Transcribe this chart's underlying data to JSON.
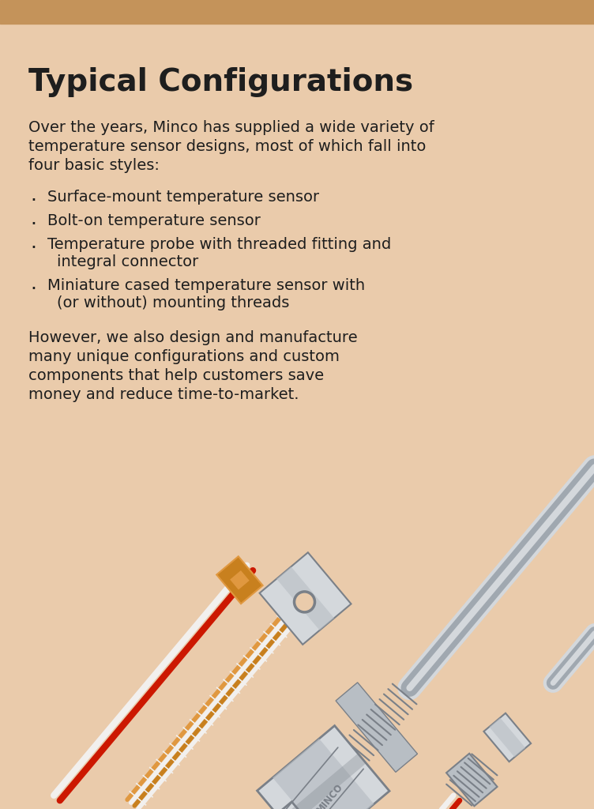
{
  "title": "Typical Configurations",
  "bg_color": "#EACBAB",
  "header_bar_color": "#C4935A",
  "text_color": "#1e1e1e",
  "title_fontsize": 28,
  "body_fontsize": 14,
  "intro_lines": [
    "Over the years, Minco has supplied a wide variety of",
    "temperature sensor designs, most of which fall into",
    "four basic styles:"
  ],
  "bullets": [
    "Surface-mount temperature sensor",
    "Bolt-on temperature sensor",
    "Temperature probe with threaded fitting and\n  integral connector",
    "Miniature cased temperature sensor with\n  (or without) mounting threads"
  ],
  "closing_lines": [
    "However, we also design and manufacture",
    "many unique configurations and custom",
    "components that help customers save",
    "money and reduce time-to-market."
  ],
  "minco_label": "MINCO",
  "bg_hex": "#EACBAB",
  "gray": "#b8bec4",
  "gray_dark": "#7a8088",
  "gray_light": "#d4d8dc",
  "gray_mid": "#a0a8b0",
  "orange": "#C8801E",
  "orange_light": "#E09840",
  "wire_red": "#CC1800",
  "wire_white": "#f2f0ee",
  "wire_orange": "#D4872A"
}
